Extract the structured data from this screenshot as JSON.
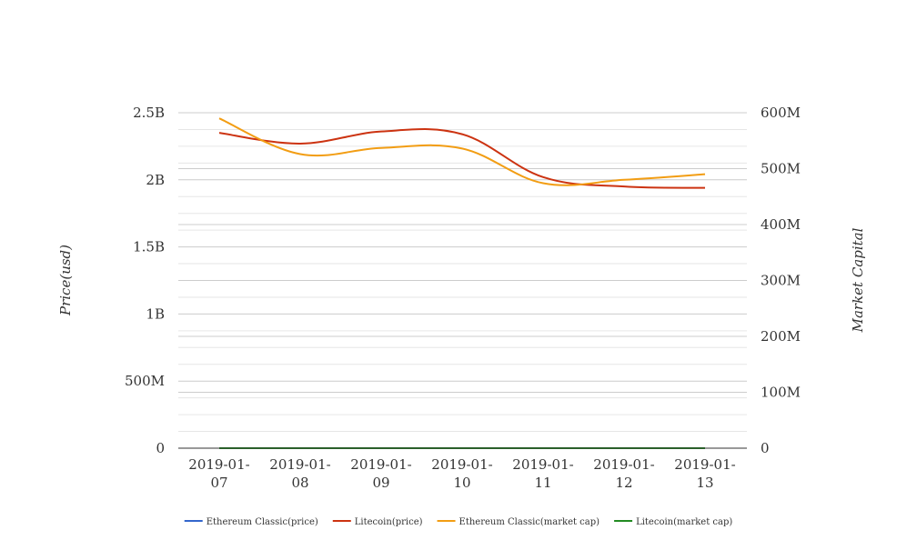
{
  "chart_data": {
    "type": "line",
    "categories": [
      "2019-01-07",
      "2019-01-08",
      "2019-01-09",
      "2019-01-10",
      "2019-01-11",
      "2019-01-12",
      "2019-01-13"
    ],
    "y_left": {
      "label": "Price(usd)",
      "ylim": [
        0,
        2500000000
      ],
      "ticks": [
        {
          "value": 0,
          "label": "0"
        },
        {
          "value": 500000000,
          "label": "500M"
        },
        {
          "value": 1000000000,
          "label": "1B"
        },
        {
          "value": 1500000000,
          "label": "1.5B"
        },
        {
          "value": 2000000000,
          "label": "2B"
        },
        {
          "value": 2500000000,
          "label": "2.5B"
        }
      ]
    },
    "y_right": {
      "label": "Market Capital",
      "ylim": [
        0,
        600000000
      ],
      "ticks": [
        {
          "value": 0,
          "label": "0"
        },
        {
          "value": 100000000,
          "label": "100M"
        },
        {
          "value": 200000000,
          "label": "200M"
        },
        {
          "value": 300000000,
          "label": "300M"
        },
        {
          "value": 400000000,
          "label": "400M"
        },
        {
          "value": 500000000,
          "label": "500M"
        },
        {
          "value": 600000000,
          "label": "600M"
        }
      ]
    },
    "series": [
      {
        "name": "Ethereum Classic(price)",
        "axis": "left",
        "color": "#3366cc",
        "values": [
          4.5,
          5.3,
          5.2,
          5.0,
          4.6,
          4.7,
          4.8
        ]
      },
      {
        "name": "Litecoin(price)",
        "axis": "left",
        "color": "#cc3311",
        "values": [
          2350000000,
          2270000000,
          2360000000,
          2340000000,
          2020000000,
          1950000000,
          1940000000
        ]
      },
      {
        "name": "Ethereum Classic(market cap)",
        "axis": "right",
        "color": "#f29d13",
        "values": [
          590000000,
          526000000,
          537000000,
          536000000,
          474000000,
          480000000,
          490000000
        ]
      },
      {
        "name": "Litecoin(market cap)",
        "axis": "right",
        "color": "#228b22",
        "values": [
          0,
          0,
          0,
          0,
          0,
          0,
          0
        ]
      }
    ],
    "grid": true,
    "legend": "bottom-center"
  }
}
